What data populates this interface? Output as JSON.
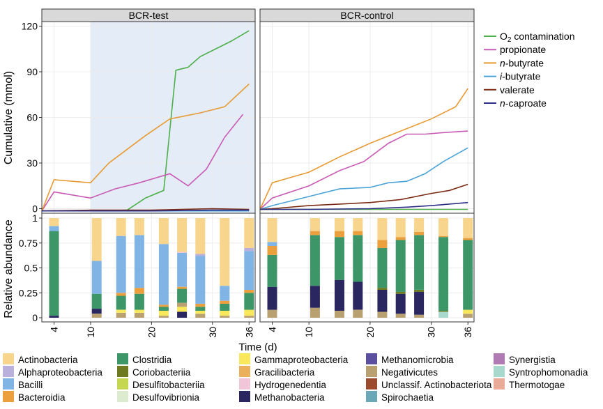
{
  "chart_data": {
    "type": "line",
    "title": "",
    "facets": [
      "BCR-test",
      "BCR-control"
    ],
    "xlabel": "Time (d)",
    "x_ticks": [
      4,
      10,
      20,
      30,
      36
    ],
    "x_range": [
      2,
      37
    ],
    "highlight": {
      "facet": "BCR-test",
      "x_start": 10,
      "x_end": 37,
      "color": "#e4ecf8"
    },
    "top": {
      "ylabel": "Cumulative (mmol)",
      "ylim": [
        -3,
        123
      ],
      "y_ticks": [
        0,
        30,
        60,
        90,
        120
      ],
      "legend": [
        {
          "prefix": "",
          "italic": "",
          "label": "O",
          "sub": "2",
          "suffix": " contamination",
          "color": "#4daf4a"
        },
        {
          "prefix": "",
          "italic": "",
          "label": "propionate",
          "sub": "",
          "suffix": "",
          "color": "#c95ab5"
        },
        {
          "prefix": "",
          "italic": "n",
          "label": "-butyrate",
          "sub": "",
          "suffix": "",
          "color": "#e89a32"
        },
        {
          "prefix": "",
          "italic": "i",
          "label": "-butyrate",
          "sub": "",
          "suffix": "",
          "color": "#4aa3d8"
        },
        {
          "prefix": "",
          "italic": "",
          "label": "valerate",
          "sub": "",
          "suffix": "",
          "color": "#7a2a12"
        },
        {
          "prefix": "",
          "italic": "n",
          "label": "-caproate",
          "sub": "",
          "suffix": "",
          "color": "#2c2d84"
        }
      ],
      "series": {
        "BCR-test": [
          {
            "name": "O2 contamination",
            "x": [
              2,
              10,
              13,
              16,
              19,
              22,
              24,
              26,
              28,
              30,
              33,
              36
            ],
            "y": [
              -1.5,
              -1.5,
              -1.5,
              -1,
              7,
              12,
              91,
              93,
              100,
              104,
              110,
              117
            ]
          },
          {
            "name": "propionate",
            "x": [
              2,
              4,
              10,
              14,
              18,
              23,
              26,
              29,
              32,
              35
            ],
            "y": [
              -1.5,
              11,
              7,
              13,
              17,
              23,
              15,
              26,
              47,
              62
            ]
          },
          {
            "name": "n-butyrate",
            "x": [
              2,
              4,
              10,
              13,
              16,
              19,
              23,
              28,
              32,
              36
            ],
            "y": [
              -1.5,
              19,
              17,
              30,
              39,
              48,
              59,
              63,
              67,
              82
            ]
          },
          {
            "name": "i-butyrate",
            "x": [
              2,
              10,
              20,
              30,
              36
            ],
            "y": [
              -1.5,
              -1.5,
              -1.5,
              -1.5,
              -1.5
            ]
          },
          {
            "name": "valerate",
            "x": [
              2,
              10,
              20,
              30,
              36
            ],
            "y": [
              -1.5,
              -1,
              -1,
              0,
              -0.5
            ]
          },
          {
            "name": "n-caproate",
            "x": [
              2,
              10,
              20,
              30,
              36
            ],
            "y": [
              -1.5,
              -1.5,
              -1.5,
              -1,
              -1
            ]
          }
        ],
        "BCR-control": [
          {
            "name": "O2 contamination",
            "x": [
              2,
              36
            ],
            "y": [
              -0.5,
              -0.5
            ]
          },
          {
            "name": "propionate",
            "x": [
              2,
              4,
              10,
              15,
              19,
              23,
              26,
              29,
              32,
              36
            ],
            "y": [
              -0.5,
              7,
              15,
              25,
              31,
              43,
              49,
              49,
              50,
              51
            ]
          },
          {
            "name": "n-butyrate",
            "x": [
              2,
              4,
              10,
              15,
              20,
              25,
              30,
              34,
              36
            ],
            "y": [
              -0.5,
              17,
              24,
              34,
              43,
              51,
              59,
              67,
              79
            ]
          },
          {
            "name": "i-butyrate",
            "x": [
              2,
              4,
              10,
              15,
              20,
              23,
              26,
              29,
              32,
              36
            ],
            "y": [
              -0.5,
              2,
              8,
              13,
              14,
              17,
              18,
              23,
              31,
              40
            ]
          },
          {
            "name": "valerate",
            "x": [
              2,
              4,
              10,
              15,
              20,
              25,
              30,
              33,
              36
            ],
            "y": [
              -0.5,
              0,
              2,
              3,
              4,
              6,
              10,
              12,
              16
            ]
          },
          {
            "name": "n-caproate",
            "x": [
              2,
              10,
              20,
              26,
              30,
              36
            ],
            "y": [
              -0.5,
              -0.5,
              0,
              1,
              2,
              4
            ]
          }
        ]
      }
    },
    "bottom": {
      "ylabel": "Relative abundance",
      "ylim": [
        0,
        1
      ],
      "y_ticks": [
        0,
        0.25,
        0.5,
        0.75,
        1
      ],
      "y_tick_labels": [
        "0",
        "0.25",
        "0.5",
        "0.75",
        "1"
      ],
      "taxa": [
        {
          "name": "Actinobacteria",
          "color": "#f7d58c"
        },
        {
          "name": "Alphaproteobacteria",
          "color": "#b9b1db"
        },
        {
          "name": "Bacilli",
          "color": "#80b4e5"
        },
        {
          "name": "Bacteroidia",
          "color": "#ec9f3d"
        },
        {
          "name": "Clostridia",
          "color": "#3d9668"
        },
        {
          "name": "Coriobacteriia",
          "color": "#6d7a1f"
        },
        {
          "name": "Desulfitobacteriia",
          "color": "#c5d651"
        },
        {
          "name": "Desulfovibrionia",
          "color": "#dcead0"
        },
        {
          "name": "Gammaproteobacteria",
          "color": "#f9e85c"
        },
        {
          "name": "Gracilibacteria",
          "color": "#ebb05b"
        },
        {
          "name": "Hydrogenedentia",
          "color": "#f2c6d9"
        },
        {
          "name": "Methanobacteria",
          "color": "#2a2660"
        },
        {
          "name": "Methanomicrobia",
          "color": "#5b50a0"
        },
        {
          "name": "Negativicutes",
          "color": "#b9a071"
        },
        {
          "name": "Unclassif. Actinobacteriota",
          "color": "#9b4a2e"
        },
        {
          "name": "Spirochaetia",
          "color": "#6aa8b8"
        },
        {
          "name": "Synergistia",
          "color": "#b07ab2"
        },
        {
          "name": "Syntrophomonadia",
          "color": "#a9d8cd"
        },
        {
          "name": "Thermotogae",
          "color": "#eaaa98"
        }
      ],
      "bars": {
        "BCR-test": [
          {
            "x": 4,
            "seg": [
              [
                "Methanobacteria",
                0.02
              ],
              [
                "Clostridia",
                0.85
              ],
              [
                "Bacilli",
                0.05
              ],
              [
                "Actinobacteria",
                0.08
              ]
            ]
          },
          {
            "x": 11,
            "seg": [
              [
                "Negativicutes",
                0.04
              ],
              [
                "Methanobacteria",
                0.05
              ],
              [
                "Clostridia",
                0.15
              ],
              [
                "Bacilli",
                0.33
              ],
              [
                "Actinobacteria",
                0.43
              ]
            ]
          },
          {
            "x": 15,
            "seg": [
              [
                "Negativicutes",
                0.05
              ],
              [
                "Gammaproteobacteria",
                0.03
              ],
              [
                "Clostridia",
                0.14
              ],
              [
                "Bacteroidia",
                0.03
              ],
              [
                "Bacilli",
                0.57
              ],
              [
                "Actinobacteria",
                0.18
              ]
            ]
          },
          {
            "x": 18,
            "seg": [
              [
                "Negativicutes",
                0.05
              ],
              [
                "Gammaproteobacteria",
                0.03
              ],
              [
                "Clostridia",
                0.16
              ],
              [
                "Bacteroidia",
                0.06
              ],
              [
                "Bacilli",
                0.53
              ],
              [
                "Actinobacteria",
                0.17
              ]
            ]
          },
          {
            "x": 22,
            "seg": [
              [
                "Negativicutes",
                0.02
              ],
              [
                "Gammaproteobacteria",
                0.05
              ],
              [
                "Clostridia",
                0.04
              ],
              [
                "Bacteroidia",
                0.02
              ],
              [
                "Bacilli",
                0.61
              ],
              [
                "Actinobacteria",
                0.26
              ]
            ]
          },
          {
            "x": 25,
            "seg": [
              [
                "Methanobacteria",
                0.06
              ],
              [
                "Gammaproteobacteria",
                0.05
              ],
              [
                "Negativicutes",
                0.04
              ],
              [
                "Clostridia",
                0.14
              ],
              [
                "Bacteroidia",
                0.02
              ],
              [
                "Bacilli",
                0.34
              ],
              [
                "Hydrogenedentia",
                0.01
              ],
              [
                "Actinobacteria",
                0.34
              ]
            ]
          },
          {
            "x": 28,
            "seg": [
              [
                "Negativicutes",
                0.04
              ],
              [
                "Gammaproteobacteria",
                0.03
              ],
              [
                "Clostridia",
                0.04
              ],
              [
                "Bacteroidia",
                0.03
              ],
              [
                "Bacilli",
                0.48
              ],
              [
                "Alphaproteobacteria",
                0.02
              ],
              [
                "Actinobacteria",
                0.36
              ]
            ]
          },
          {
            "x": 32,
            "seg": [
              [
                "Negativicutes",
                0.02
              ],
              [
                "Gammaproteobacteria",
                0.05
              ],
              [
                "Clostridia",
                0.07
              ],
              [
                "Bacteroidia",
                0.03
              ],
              [
                "Bacilli",
                0.15
              ],
              [
                "Actinobacteria",
                0.68
              ]
            ]
          },
          {
            "x": 36,
            "seg": [
              [
                "Negativicutes",
                0.02
              ],
              [
                "Gammaproteobacteria",
                0.06
              ],
              [
                "Clostridia",
                0.17
              ],
              [
                "Bacteroidia",
                0.03
              ],
              [
                "Bacilli",
                0.39
              ],
              [
                "Alphaproteobacteria",
                0.03
              ],
              [
                "Actinobacteria",
                0.3
              ]
            ]
          }
        ],
        "BCR-control": [
          {
            "x": 4,
            "seg": [
              [
                "Negativicutes",
                0.08
              ],
              [
                "Methanobacteria",
                0.23
              ],
              [
                "Clostridia",
                0.32
              ],
              [
                "Bacteroidia",
                0.09
              ],
              [
                "Bacilli",
                0.04
              ],
              [
                "Actinobacteria",
                0.24
              ]
            ]
          },
          {
            "x": 11,
            "seg": [
              [
                "Negativicutes",
                0.1
              ],
              [
                "Methanobacteria",
                0.22
              ],
              [
                "Clostridia",
                0.51
              ],
              [
                "Bacteroidia",
                0.04
              ],
              [
                "Actinobacteria",
                0.13
              ]
            ]
          },
          {
            "x": 15,
            "seg": [
              [
                "Negativicutes",
                0.07
              ],
              [
                "Methanobacteria",
                0.31
              ],
              [
                "Clostridia",
                0.43
              ],
              [
                "Bacteroidia",
                0.06
              ],
              [
                "Actinobacteria",
                0.13
              ]
            ]
          },
          {
            "x": 18,
            "seg": [
              [
                "Negativicutes",
                0.08
              ],
              [
                "Methanobacteria",
                0.28
              ],
              [
                "Clostridia",
                0.47
              ],
              [
                "Bacteroidia",
                0.04
              ],
              [
                "Actinobacteria",
                0.13
              ]
            ]
          },
          {
            "x": 22,
            "seg": [
              [
                "Negativicutes",
                0.06
              ],
              [
                "Methanobacteria",
                0.22
              ],
              [
                "Coriobacteriia",
                0.02
              ],
              [
                "Clostridia",
                0.4
              ],
              [
                "Bacteroidia",
                0.08
              ],
              [
                "Actinobacteria",
                0.22
              ]
            ]
          },
          {
            "x": 25,
            "seg": [
              [
                "Negativicutes",
                0.04
              ],
              [
                "Methanobacteria",
                0.2
              ],
              [
                "Coriobacteriia",
                0.02
              ],
              [
                "Clostridia",
                0.52
              ],
              [
                "Bacteroidia",
                0.03
              ],
              [
                "Actinobacteria",
                0.19
              ]
            ]
          },
          {
            "x": 28,
            "seg": [
              [
                "Negativicutes",
                0.03
              ],
              [
                "Methanobacteria",
                0.23
              ],
              [
                "Coriobacteriia",
                0.02
              ],
              [
                "Clostridia",
                0.55
              ],
              [
                "Bacteroidia",
                0.03
              ],
              [
                "Actinobacteria",
                0.14
              ]
            ]
          },
          {
            "x": 32,
            "seg": [
              [
                "Syntrophomonadia",
                0.06
              ],
              [
                "Coriobacteriia",
                0.01
              ],
              [
                "Clostridia",
                0.74
              ],
              [
                "Bacteroidia",
                0.01
              ],
              [
                "Actinobacteria",
                0.18
              ]
            ]
          },
          {
            "x": 36,
            "seg": [
              [
                "Negativicutes",
                0.04
              ],
              [
                "Gammaproteobacteria",
                0.04
              ],
              [
                "Clostridia",
                0.7
              ],
              [
                "Bacteroidia",
                0.02
              ],
              [
                "Actinobacteria",
                0.2
              ]
            ]
          }
        ]
      }
    }
  }
}
